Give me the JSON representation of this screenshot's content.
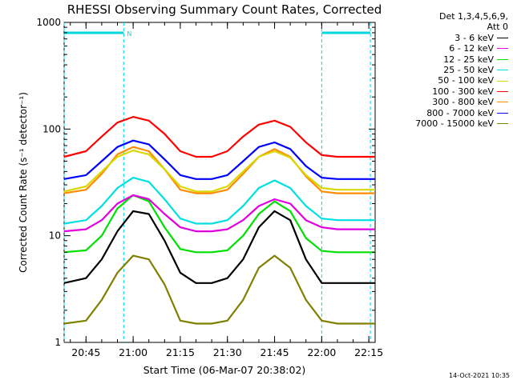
{
  "chart_data": {
    "type": "line",
    "title": "RHESSI Observing Summary Count Rates, Corrected",
    "xlabel": "Start Time (06-Mar-07 20:38:02)",
    "ylabel": "Corrected Count Rate (s⁻¹ detector⁻¹)",
    "yscale": "log",
    "ylim": [
      1,
      1000
    ],
    "xlim": [
      "20:38:02",
      "22:17:00"
    ],
    "x_ticks": [
      "20:45",
      "21:00",
      "21:15",
      "21:30",
      "21:45",
      "22:00",
      "22:15"
    ],
    "y_ticks": [
      "1",
      "10",
      "100",
      "1000"
    ],
    "legend_header": [
      "Det 1,3,4,5,6,9,",
      "Att 0"
    ],
    "legend_position": "right",
    "flag_bars": [
      {
        "start": "20:38:02",
        "end": "20:57:00",
        "label": "N"
      },
      {
        "start": "22:00:00",
        "end": "22:15:30",
        "label": ""
      }
    ],
    "x": [
      "20:38",
      "20:45",
      "20:50",
      "20:55",
      "21:00",
      "21:05",
      "21:10",
      "21:15",
      "21:20",
      "21:25",
      "21:30",
      "21:35",
      "21:40",
      "21:45",
      "21:50",
      "21:55",
      "22:00",
      "22:05",
      "22:10",
      "22:17"
    ],
    "series": [
      {
        "name": "3 - 6 keV",
        "color": "#000000",
        "values": [
          3.6,
          4,
          6,
          11,
          17,
          16,
          9,
          4.5,
          3.6,
          3.6,
          4,
          6,
          12,
          17,
          14,
          6,
          3.6,
          3.6,
          3.6,
          3.6
        ]
      },
      {
        "name": "6 - 12 keV",
        "color": "#e000e0",
        "values": [
          11,
          11.5,
          14,
          20,
          24,
          22,
          16,
          12,
          11,
          11,
          11.5,
          14,
          19,
          22,
          20,
          14,
          12,
          11.5,
          11.5,
          11.5
        ]
      },
      {
        "name": "12 - 25 keV",
        "color": "#00e000",
        "values": [
          7,
          7.3,
          10,
          18,
          24,
          21,
          12,
          7.5,
          7,
          7,
          7.3,
          10,
          16,
          21,
          17,
          9.5,
          7.2,
          7,
          7,
          7
        ]
      },
      {
        "name": "25 - 50 keV",
        "color": "#00e0e0",
        "values": [
          13,
          14,
          19,
          28,
          35,
          32,
          22,
          14.5,
          13,
          13,
          14,
          19,
          28,
          33,
          28,
          19,
          14.5,
          14,
          14,
          14
        ]
      },
      {
        "name": "50 - 100 keV",
        "color": "#d8d800",
        "values": [
          26,
          29,
          40,
          55,
          63,
          58,
          42,
          29,
          26,
          26,
          29,
          40,
          55,
          62,
          54,
          37,
          28,
          27,
          27,
          27
        ]
      },
      {
        "name": "100 - 300 keV",
        "color": "#ff0000",
        "values": [
          55,
          62,
          85,
          115,
          130,
          120,
          90,
          62,
          55,
          55,
          62,
          85,
          110,
          120,
          105,
          75,
          57,
          55,
          55,
          55
        ]
      },
      {
        "name": "300 - 800 keV",
        "color": "#ff8c00",
        "values": [
          25,
          27,
          38,
          58,
          68,
          62,
          42,
          27,
          25,
          25,
          27,
          38,
          55,
          65,
          55,
          36,
          26,
          25,
          25,
          25
        ]
      },
      {
        "name": "800 - 7000 keV",
        "color": "#0000ff",
        "values": [
          34,
          37,
          50,
          68,
          78,
          72,
          52,
          37,
          34,
          34,
          37,
          50,
          68,
          75,
          65,
          45,
          35,
          34,
          34,
          34
        ]
      },
      {
        "name": "7000 - 15000 keV",
        "color": "#808000",
        "values": [
          1.5,
          1.6,
          2.5,
          4.5,
          6.5,
          6,
          3.5,
          1.6,
          1.5,
          1.5,
          1.6,
          2.5,
          5,
          6.5,
          5,
          2.5,
          1.6,
          1.5,
          1.5,
          1.5
        ]
      }
    ]
  },
  "timestamp": "14-Oct-2021 10:35"
}
